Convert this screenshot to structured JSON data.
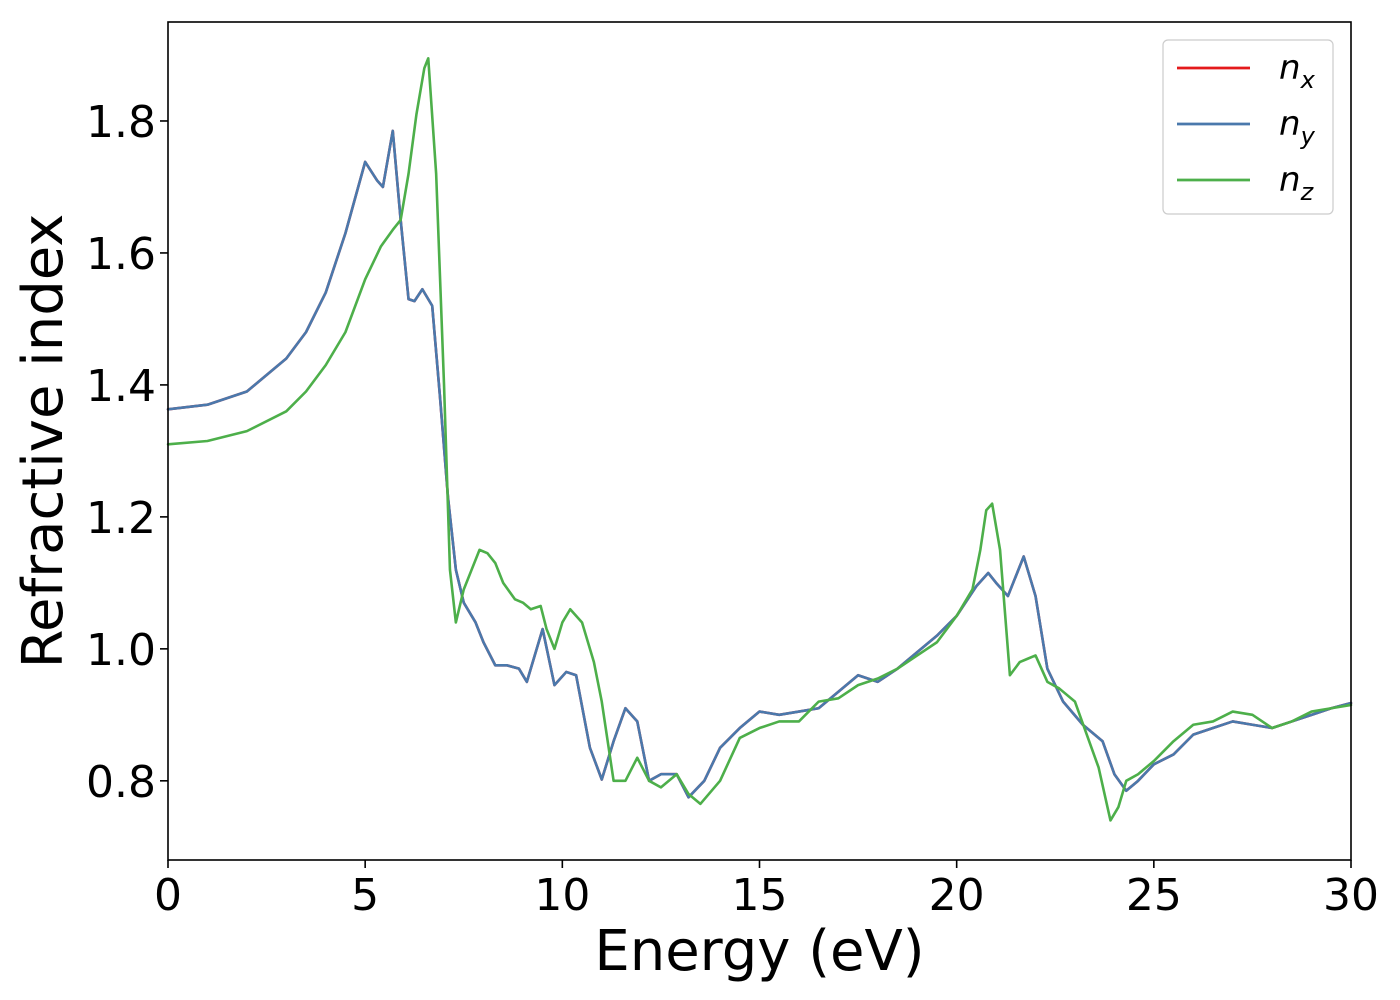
{
  "chart_data": {
    "type": "line",
    "title": "",
    "xlabel": "Energy (eV)",
    "ylabel": "Refractive index",
    "xlim": [
      0,
      30
    ],
    "ylim": [
      0.68,
      1.95
    ],
    "xticks": [
      0,
      5,
      10,
      15,
      20,
      25,
      30
    ],
    "yticks": [
      0.8,
      1.0,
      1.2,
      1.4,
      1.6,
      1.8
    ],
    "xtick_labels": [
      "0",
      "5",
      "10",
      "15",
      "20",
      "25",
      "30"
    ],
    "ytick_labels": [
      "0.8",
      "1.0",
      "1.2",
      "1.4",
      "1.6",
      "1.8"
    ],
    "grid": false,
    "legend_position": "top-right",
    "series": [
      {
        "name": "n_x",
        "label_base": "n",
        "label_sub": "x",
        "color": "#e41a1c",
        "x": [
          0,
          1,
          2,
          3,
          3.5,
          4,
          4.5,
          5,
          5.3,
          5.45,
          5.7,
          5.9,
          6.1,
          6.25,
          6.45,
          6.7,
          6.9,
          7.1,
          7.3,
          7.5,
          7.8,
          8.0,
          8.3,
          8.6,
          8.9,
          9.1,
          9.5,
          9.8,
          10.1,
          10.35,
          10.7,
          11.0,
          11.3,
          11.6,
          11.9,
          12.2,
          12.5,
          12.9,
          13.2,
          13.6,
          14.0,
          14.5,
          15.0,
          15.5,
          16.0,
          16.5,
          17.0,
          17.5,
          18.0,
          18.5,
          19.0,
          19.5,
          20.0,
          20.5,
          20.8,
          21.0,
          21.3,
          21.7,
          22.0,
          22.3,
          22.7,
          23.2,
          23.7,
          24.0,
          24.3,
          24.6,
          25.0,
          25.5,
          26.0,
          26.5,
          27.0,
          27.5,
          28.0,
          28.5,
          29.0,
          29.5,
          30.0
        ],
        "y": [
          1.363,
          1.37,
          1.39,
          1.44,
          1.48,
          1.54,
          1.63,
          1.738,
          1.71,
          1.7,
          1.785,
          1.65,
          1.53,
          1.527,
          1.545,
          1.52,
          1.38,
          1.23,
          1.12,
          1.07,
          1.04,
          1.01,
          0.975,
          0.975,
          0.97,
          0.95,
          1.03,
          0.945,
          0.965,
          0.96,
          0.85,
          0.802,
          0.86,
          0.91,
          0.89,
          0.8,
          0.81,
          0.81,
          0.775,
          0.8,
          0.85,
          0.88,
          0.905,
          0.9,
          0.905,
          0.91,
          0.935,
          0.96,
          0.95,
          0.97,
          0.995,
          1.02,
          1.05,
          1.095,
          1.115,
          1.1,
          1.08,
          1.14,
          1.08,
          0.97,
          0.92,
          0.885,
          0.86,
          0.81,
          0.785,
          0.8,
          0.825,
          0.84,
          0.87,
          0.88,
          0.89,
          0.885,
          0.88,
          0.89,
          0.9,
          0.91,
          0.918
        ]
      },
      {
        "name": "n_y",
        "label_base": "n",
        "label_sub": "y",
        "color": "#4a79ac",
        "x": [
          0,
          1,
          2,
          3,
          3.5,
          4,
          4.5,
          5,
          5.3,
          5.45,
          5.7,
          5.9,
          6.1,
          6.25,
          6.45,
          6.7,
          6.9,
          7.1,
          7.3,
          7.5,
          7.8,
          8.0,
          8.3,
          8.6,
          8.9,
          9.1,
          9.5,
          9.8,
          10.1,
          10.35,
          10.7,
          11.0,
          11.3,
          11.6,
          11.9,
          12.2,
          12.5,
          12.9,
          13.2,
          13.6,
          14.0,
          14.5,
          15.0,
          15.5,
          16.0,
          16.5,
          17.0,
          17.5,
          18.0,
          18.5,
          19.0,
          19.5,
          20.0,
          20.5,
          20.8,
          21.0,
          21.3,
          21.7,
          22.0,
          22.3,
          22.7,
          23.2,
          23.7,
          24.0,
          24.3,
          24.6,
          25.0,
          25.5,
          26.0,
          26.5,
          27.0,
          27.5,
          28.0,
          28.5,
          29.0,
          29.5,
          30.0
        ],
        "y": [
          1.363,
          1.37,
          1.39,
          1.44,
          1.48,
          1.54,
          1.63,
          1.738,
          1.71,
          1.7,
          1.785,
          1.65,
          1.53,
          1.527,
          1.545,
          1.52,
          1.38,
          1.23,
          1.12,
          1.07,
          1.04,
          1.01,
          0.975,
          0.975,
          0.97,
          0.95,
          1.03,
          0.945,
          0.965,
          0.96,
          0.85,
          0.802,
          0.86,
          0.91,
          0.89,
          0.8,
          0.81,
          0.81,
          0.775,
          0.8,
          0.85,
          0.88,
          0.905,
          0.9,
          0.905,
          0.91,
          0.935,
          0.96,
          0.95,
          0.97,
          0.995,
          1.02,
          1.05,
          1.095,
          1.115,
          1.1,
          1.08,
          1.14,
          1.08,
          0.97,
          0.92,
          0.885,
          0.86,
          0.81,
          0.785,
          0.8,
          0.825,
          0.84,
          0.87,
          0.88,
          0.89,
          0.885,
          0.88,
          0.89,
          0.9,
          0.91,
          0.918
        ]
      },
      {
        "name": "n_z",
        "label_base": "n",
        "label_sub": "z",
        "color": "#4daf4a",
        "x": [
          0,
          1,
          2,
          3,
          3.5,
          4,
          4.5,
          5,
          5.4,
          5.7,
          5.9,
          6.1,
          6.3,
          6.5,
          6.6,
          6.8,
          7.0,
          7.15,
          7.3,
          7.5,
          7.7,
          7.9,
          8.1,
          8.3,
          8.5,
          8.8,
          9.0,
          9.2,
          9.45,
          9.6,
          9.8,
          10.0,
          10.2,
          10.5,
          10.8,
          11.0,
          11.3,
          11.6,
          11.9,
          12.2,
          12.5,
          12.9,
          13.2,
          13.5,
          14.0,
          14.5,
          15.0,
          15.5,
          16.0,
          16.5,
          17.0,
          17.5,
          18.0,
          18.5,
          19.0,
          19.5,
          20.0,
          20.4,
          20.6,
          20.75,
          20.9,
          21.1,
          21.35,
          21.6,
          21.8,
          22.0,
          22.3,
          22.6,
          23.0,
          23.3,
          23.6,
          23.9,
          24.1,
          24.3,
          24.6,
          25.0,
          25.5,
          26.0,
          26.5,
          27.0,
          27.5,
          28.0,
          28.5,
          29.0,
          29.5,
          30.0
        ],
        "y": [
          1.31,
          1.315,
          1.33,
          1.36,
          1.39,
          1.43,
          1.48,
          1.56,
          1.61,
          1.635,
          1.65,
          1.72,
          1.81,
          1.88,
          1.895,
          1.72,
          1.4,
          1.12,
          1.04,
          1.09,
          1.12,
          1.15,
          1.145,
          1.13,
          1.1,
          1.075,
          1.07,
          1.06,
          1.065,
          1.03,
          1.0,
          1.04,
          1.06,
          1.04,
          0.98,
          0.92,
          0.8,
          0.8,
          0.835,
          0.8,
          0.79,
          0.81,
          0.78,
          0.765,
          0.8,
          0.865,
          0.88,
          0.89,
          0.89,
          0.92,
          0.925,
          0.945,
          0.955,
          0.97,
          0.99,
          1.01,
          1.05,
          1.09,
          1.15,
          1.21,
          1.22,
          1.15,
          0.96,
          0.98,
          0.985,
          0.99,
          0.95,
          0.94,
          0.92,
          0.87,
          0.82,
          0.74,
          0.76,
          0.8,
          0.81,
          0.83,
          0.86,
          0.885,
          0.89,
          0.905,
          0.9,
          0.88,
          0.89,
          0.905,
          0.91,
          0.915
        ]
      }
    ]
  }
}
